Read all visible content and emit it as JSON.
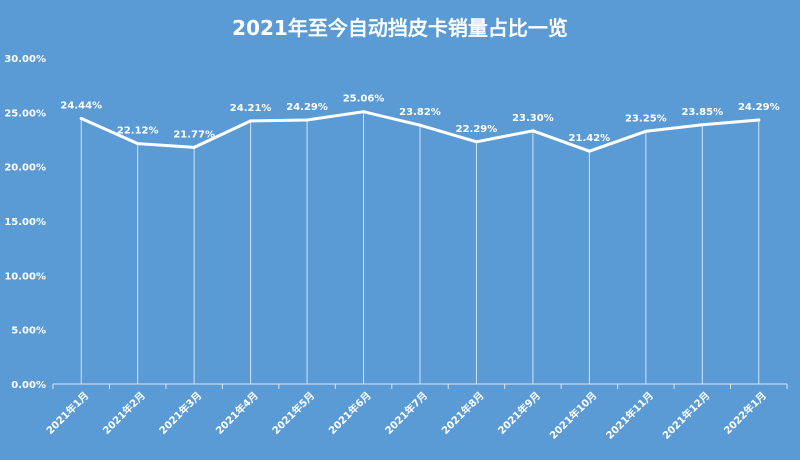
{
  "chart_data": {
    "type": "line",
    "title": "2021年至今自动挡皮卡销量占比一览",
    "categories": [
      "2021年1月",
      "2021年2月",
      "2021年3月",
      "2021年4月",
      "2021年5月",
      "2021年6月",
      "2021年7月",
      "2021年8月",
      "2021年9月",
      "2021年10月",
      "2021年11月",
      "2021年12月",
      "2022年1月"
    ],
    "series": [
      {
        "values": [
          24.44,
          22.12,
          21.77,
          24.21,
          24.29,
          25.06,
          23.82,
          22.29,
          23.3,
          21.42,
          23.25,
          23.85,
          24.29
        ],
        "labels": [
          "24.44%",
          "22.12%",
          "21.77%",
          "24.21%",
          "24.29%",
          "25.06%",
          "23.82%",
          "22.29%",
          "23.30%",
          "21.42%",
          "23.25%",
          "23.85%",
          "24.29%"
        ]
      }
    ],
    "yticks": [
      "0.00%",
      "5.00%",
      "10.00%",
      "15.00%",
      "20.00%",
      "25.00%",
      "30.00%"
    ],
    "ylim": [
      0,
      30
    ],
    "xlabel": "",
    "ylabel": "",
    "grid": false,
    "drop_lines": true,
    "colors": {
      "background": "#5b9bd5",
      "line": "#ffffff",
      "text": "#ffffff"
    }
  }
}
